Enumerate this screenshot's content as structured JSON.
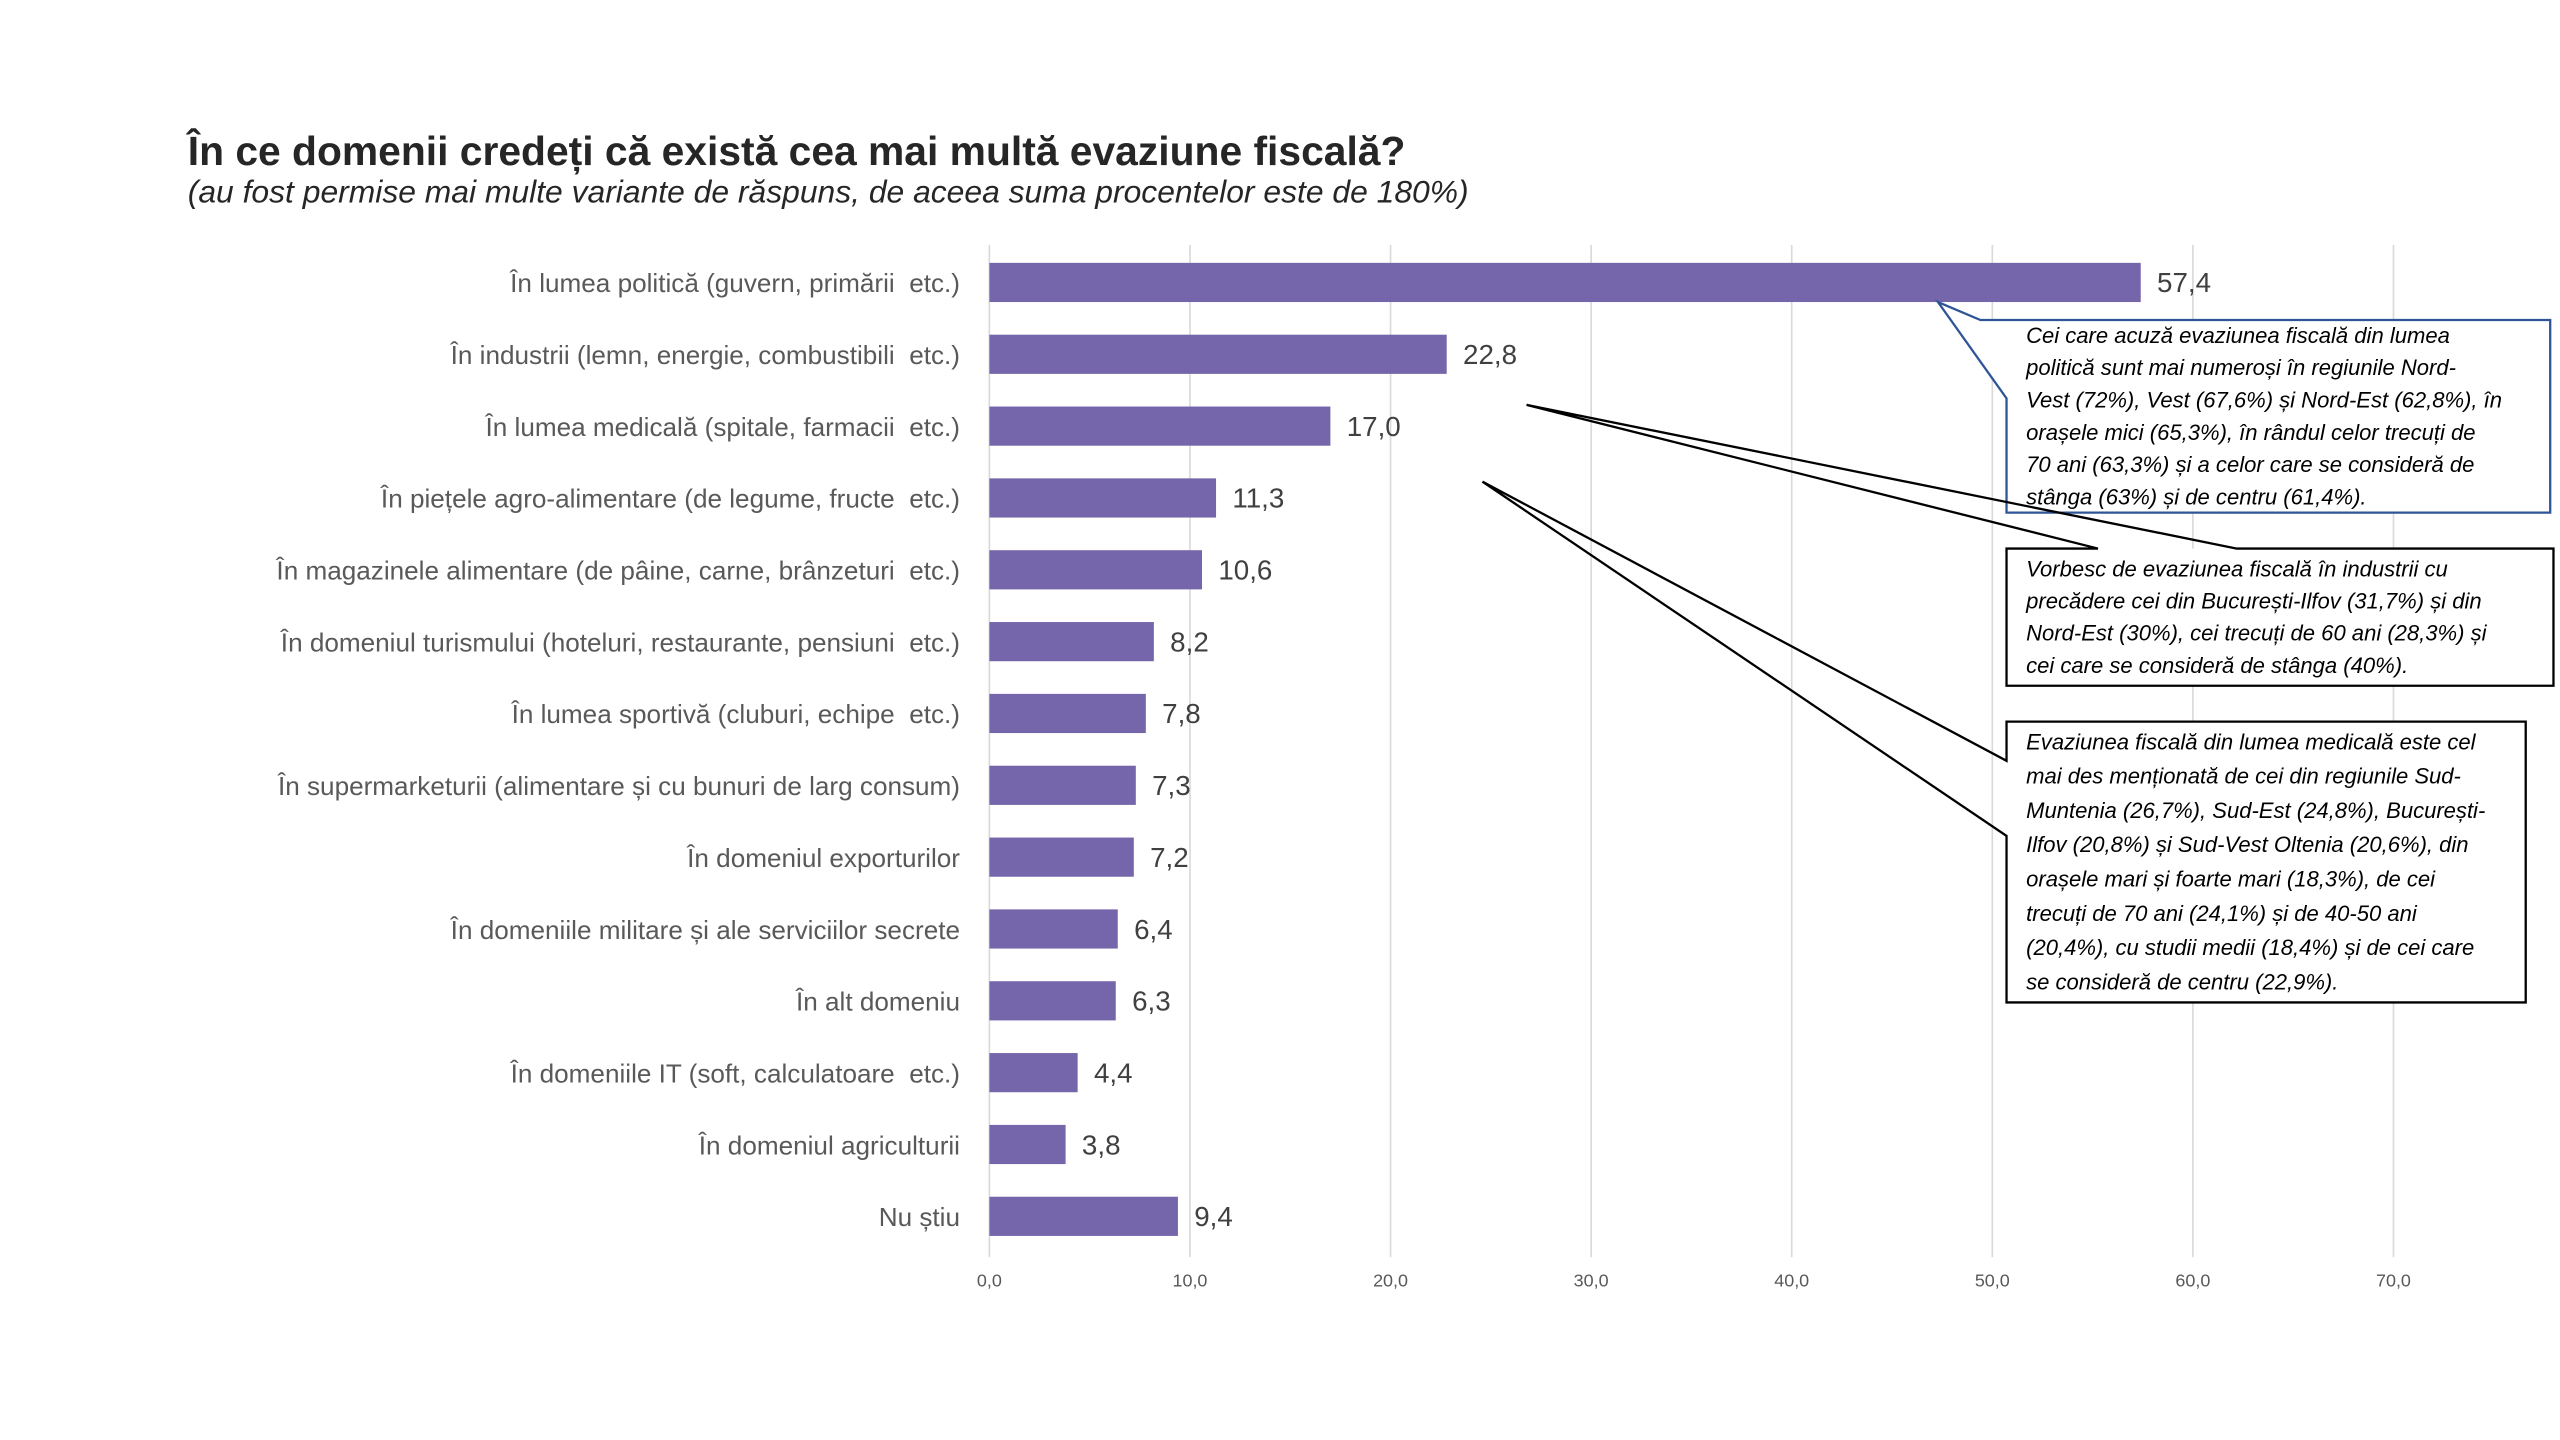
{
  "colors": {
    "bar": "#7566AB",
    "grid": "#D9D9D9",
    "callout_highlight_border": "#2F5597",
    "callout_border": "#000000",
    "category_text": "#595959",
    "value_text": "#404040",
    "title_text": "#262626"
  },
  "chart_data": {
    "type": "bar",
    "orientation": "horizontal",
    "title": "În ce domenii credeți că există cea mai multă evaziune fiscală?",
    "subtitle": "(au fost permise mai multe variante de răspuns, de aceea suma procentelor este de 180%)",
    "xlabel": "",
    "ylabel": "",
    "categories": [
      "În lumea politică (guvern, primării  etc.)",
      "În industrii (lemn, energie, combustibili  etc.)",
      "În lumea medicală (spitale, farmacii  etc.)",
      "În piețele agro-alimentare (de legume, fructe  etc.)",
      "În magazinele alimentare (de pâine, carne, brânzeturi  etc.)",
      "În domeniul turismului (hoteluri, restaurante, pensiuni  etc.)",
      "În lumea sportivă (cluburi, echipe  etc.)",
      "În supermarketurii (alimentare și cu bunuri de larg consum)",
      "În domeniul exporturilor",
      "În domeniile militare și ale serviciilor secrete",
      "În alt domeniu",
      "În domeniile IT (soft, calculatoare  etc.)",
      "În domeniul agriculturii",
      "Nu știu"
    ],
    "values": [
      57.4,
      22.8,
      17.0,
      11.3,
      10.6,
      8.2,
      7.8,
      7.3,
      7.2,
      6.4,
      6.3,
      4.4,
      3.8,
      9.4
    ],
    "data_labels": [
      "57,4",
      "22,8",
      "17,0",
      "11,3",
      "10,6",
      "8,2",
      "7,8",
      "7,3",
      "7,2",
      "6,4",
      "6,3",
      "4,4",
      "3,8",
      "9,4"
    ],
    "xlim": [
      0,
      70
    ],
    "x_ticks": [
      "0,0",
      "10,0",
      "20,0",
      "30,0",
      "40,0",
      "50,0",
      "60,0",
      "70,0"
    ],
    "grid": true,
    "legend": "none"
  },
  "callouts": [
    {
      "lines": [
        "Cei care acuză evaziunea fiscală din lumea",
        "politică sunt mai numeroși în regiunile Nord-",
        "Vest (72%), Vest (67,6%) și Nord-Est (62,8%), în",
        "orașele mici (65,3%), în rândul celor trecuți de",
        "70 ani (63,3%) și a celor care se consideră de",
        "stânga (63%) și de centru (61,4%)."
      ]
    },
    {
      "lines": [
        "Vorbesc de evaziunea fiscală în industrii cu",
        "precădere cei din București-Ilfov (31,7%) și din",
        "Nord-Est (30%), cei trecuți de 60 ani (28,3%) și",
        "cei care se consideră de stânga (40%)."
      ]
    },
    {
      "lines": [
        "Evaziunea fiscală din lumea medicală este cel",
        "mai des menționată de cei din regiunile Sud-",
        "Muntenia (26,7%), Sud-Est (24,8%), București-",
        "Ilfov (20,8%) și Sud-Vest Oltenia (20,6%), din",
        "orașele mari și foarte mari (18,3%), de cei",
        "trecuți de 70 ani (24,1%) și de 40-50 ani",
        "(20,4%), cu studii medii (18,4%) și de cei care",
        "se consideră de centru (22,9%)."
      ]
    }
  ]
}
